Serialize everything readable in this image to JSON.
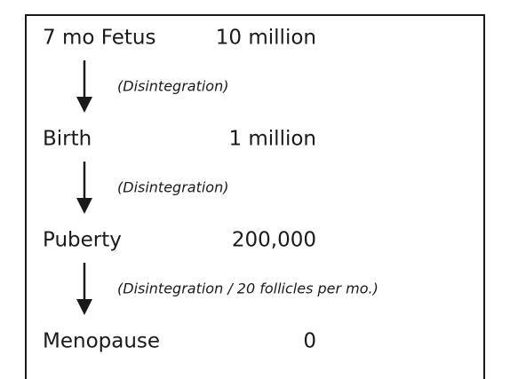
{
  "stages": [
    {
      "label": "7 mo Fetus",
      "count": "10 million"
    },
    {
      "label": "Birth",
      "count": "1 million"
    },
    {
      "label": "Puberty",
      "count": "200,000"
    },
    {
      "label": "Menopause",
      "count": "0"
    }
  ],
  "transitions": [
    {
      "label": "(Disintegration)"
    },
    {
      "label": "(Disintegration)"
    },
    {
      "label": "(Disintegration / 20 follicles per mo.)"
    }
  ]
}
